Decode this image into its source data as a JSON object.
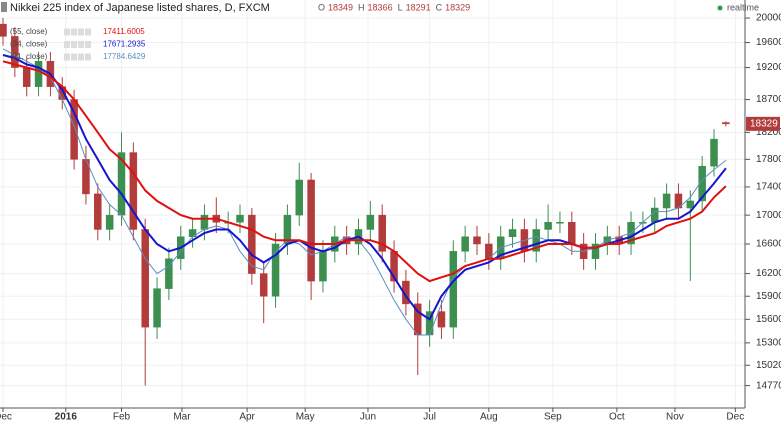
{
  "chart_data": {
    "type": "candlestick",
    "title": "Nikkei 225 index of Japanese listed shares, D, FXCM",
    "ohlc_labels": [
      "O",
      "H",
      "L",
      "C"
    ],
    "status": "realtime",
    "categories": [
      null,
      null,
      null,
      null,
      null,
      null,
      null,
      null,
      null,
      null,
      null,
      null,
      null,
      null,
      null,
      null,
      null,
      null,
      null,
      null,
      null,
      null,
      null,
      null,
      null,
      null,
      null,
      null,
      null,
      null,
      null,
      null,
      null,
      null,
      null,
      null,
      null,
      null,
      null,
      null,
      null,
      null,
      null,
      null,
      null,
      null,
      null,
      null,
      null,
      null,
      null,
      null,
      null,
      null,
      null,
      null,
      null,
      null,
      null,
      null,
      null,
      null
    ],
    "open": [
      19900,
      19700,
      19200,
      18900,
      19300,
      18900,
      18700,
      17800,
      17300,
      16800,
      17000,
      17900,
      16800,
      15500,
      16000,
      16400,
      16700,
      16800,
      17000,
      16900,
      16900,
      17000,
      16200,
      15900,
      16600,
      17000,
      17500,
      16100,
      16500,
      16700,
      16600,
      16800,
      17000,
      16500,
      16100,
      15800,
      15400,
      15700,
      15500,
      16500,
      16700,
      16600,
      16400,
      16700,
      16800,
      16500,
      16800,
      16900,
      16900,
      16600,
      16400,
      16600,
      16700,
      16600,
      16900,
      16900,
      17100,
      17300,
      17100,
      17200,
      17700,
      18349
    ],
    "high": [
      20000,
      19850,
      19350,
      19450,
      19450,
      19050,
      18850,
      18000,
      17450,
      17150,
      18200,
      18050,
      16950,
      16150,
      16550,
      16850,
      16950,
      17150,
      17250,
      17050,
      17150,
      17100,
      16350,
      16750,
      17150,
      17750,
      17600,
      16650,
      16850,
      16850,
      16950,
      17200,
      17150,
      16650,
      16250,
      15950,
      15850,
      15850,
      16650,
      16850,
      16850,
      16750,
      16850,
      16950,
      16950,
      16950,
      17150,
      17050,
      17050,
      16750,
      16750,
      16850,
      16850,
      17050,
      17050,
      17250,
      17450,
      17450,
      17350,
      17850,
      18250,
      18366
    ],
    "low": [
      19550,
      19050,
      18750,
      18750,
      18750,
      18550,
      17650,
      17150,
      16650,
      16650,
      16850,
      16650,
      14770,
      15350,
      15850,
      16250,
      16550,
      16650,
      16750,
      16750,
      16750,
      16050,
      15550,
      15750,
      16450,
      16850,
      15850,
      15950,
      16350,
      16450,
      16450,
      16650,
      16350,
      15950,
      15650,
      14900,
      15250,
      15350,
      15350,
      16350,
      16450,
      16250,
      16250,
      16550,
      16350,
      16350,
      16650,
      16750,
      16450,
      16250,
      16250,
      16450,
      16450,
      16450,
      16750,
      16750,
      16950,
      16950,
      16100,
      17050,
      17550,
      18291
    ],
    "close": [
      19700,
      19200,
      18900,
      19300,
      18900,
      18700,
      17800,
      17300,
      16800,
      17000,
      17900,
      16800,
      15500,
      16000,
      16400,
      16700,
      16800,
      17000,
      16900,
      16900,
      17000,
      16200,
      15900,
      16600,
      17000,
      17500,
      16100,
      16500,
      16700,
      16600,
      16800,
      17000,
      16500,
      16100,
      15800,
      15400,
      15700,
      15500,
      16500,
      16700,
      16600,
      16400,
      16700,
      16800,
      16500,
      16800,
      16900,
      16900,
      16600,
      16400,
      16600,
      16700,
      16600,
      16900,
      16900,
      17100,
      17300,
      17100,
      17200,
      17700,
      18100,
      18329
    ],
    "up_color": "#3d8f50",
    "down_color": "#b23b3b",
    "series": [
      {
        "name": "(55, close)",
        "color": "#e01010",
        "values": [
          19300,
          19250,
          19200,
          19150,
          19050,
          18900,
          18700,
          18450,
          18200,
          17950,
          17800,
          17600,
          17350,
          17200,
          17100,
          17000,
          16950,
          16950,
          16950,
          16900,
          16850,
          16800,
          16700,
          16650,
          16650,
          16650,
          16600,
          16600,
          16600,
          16650,
          16650,
          16650,
          16600,
          16500,
          16350,
          16200,
          16100,
          16150,
          16200,
          16300,
          16350,
          16400,
          16400,
          16450,
          16500,
          16550,
          16600,
          16600,
          16600,
          16550,
          16550,
          16600,
          16600,
          16650,
          16700,
          16750,
          16850,
          16900,
          16950,
          17050,
          17250,
          17411.6005
        ]
      },
      {
        "name": "(34, close)",
        "color": "#1515d0",
        "values": [
          19400,
          19350,
          19250,
          19200,
          19100,
          18850,
          18500,
          18100,
          17800,
          17500,
          17300,
          17050,
          16800,
          16600,
          16500,
          16550,
          16650,
          16750,
          16800,
          16800,
          16650,
          16450,
          16350,
          16450,
          16600,
          16650,
          16550,
          16500,
          16550,
          16650,
          16700,
          16600,
          16400,
          16150,
          15900,
          15700,
          15600,
          15900,
          16100,
          16250,
          16300,
          16350,
          16450,
          16500,
          16550,
          16600,
          16650,
          16650,
          16600,
          16550,
          16550,
          16600,
          16650,
          16700,
          16800,
          16900,
          16950,
          16950,
          17050,
          17250,
          17450,
          17671.2935
        ]
      },
      {
        "name": "(21, close)",
        "color": "#5a8fc0",
        "values": [
          19500,
          19400,
          19300,
          19200,
          19050,
          18700,
          18300,
          17800,
          17400,
          17150,
          17000,
          16700,
          16400,
          16200,
          16300,
          16500,
          16700,
          16800,
          16850,
          16800,
          16500,
          16300,
          16250,
          16500,
          16650,
          16600,
          16450,
          16500,
          16600,
          16700,
          16650,
          16450,
          16150,
          15850,
          15600,
          15400,
          15400,
          15800,
          16150,
          16300,
          16350,
          16400,
          16550,
          16600,
          16650,
          16700,
          16650,
          16600,
          16500,
          16500,
          16550,
          16650,
          16700,
          16750,
          16900,
          17050,
          17050,
          17100,
          17250,
          17500,
          17650,
          17784.6429
        ]
      }
    ],
    "log_scale": true,
    "ylim": [
      14500,
      20300
    ],
    "yticks": [
      20000,
      19600,
      19200,
      18700,
      18200,
      17800,
      17400,
      17000,
      16600,
      16200,
      15900,
      15600,
      15300,
      15020,
      14770
    ],
    "xticks": [
      {
        "value": 0,
        "label": "Dec"
      },
      {
        "value": 5.3,
        "label": "2016"
      },
      {
        "value": 10,
        "label": "Feb"
      },
      {
        "value": 15.1,
        "label": "Mar"
      },
      {
        "value": 20.6,
        "label": "Apr"
      },
      {
        "value": 25.5,
        "label": "May"
      },
      {
        "value": 30.8,
        "label": "Jun"
      },
      {
        "value": 36,
        "label": "Jul"
      },
      {
        "value": 41,
        "label": "Aug"
      },
      {
        "value": 46.4,
        "label": "Sep"
      },
      {
        "value": 51.8,
        "label": "Oct"
      },
      {
        "value": 56.7,
        "label": "Nov"
      },
      {
        "value": 61.8,
        "label": "Dec"
      }
    ],
    "grid": true
  }
}
